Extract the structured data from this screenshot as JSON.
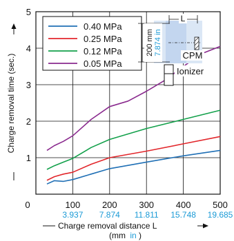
{
  "chart_data": {
    "type": "line",
    "title": "",
    "xlabel": "Charge removal distance L",
    "xlabel_unit_prefix": "(mm",
    "xlabel_unit_alt": "in",
    "xlabel_unit_suffix": ")",
    "ylabel": "Charge removal time (sec.)",
    "xlim": [
      0,
      500
    ],
    "ylim": [
      0,
      5
    ],
    "x_ticks": [
      0,
      100,
      200,
      300,
      400,
      500
    ],
    "x_tick_labels": [
      "0",
      "100",
      "200",
      "300",
      "400",
      "500"
    ],
    "x_tick_labels_in": [
      "",
      "3.937",
      "7.874",
      "11.811",
      "15.748",
      "19.685"
    ],
    "y_ticks": [
      0,
      1,
      2,
      3,
      4,
      5
    ],
    "y_tick_labels": [
      "",
      "1",
      "2",
      "3",
      "4",
      "5"
    ],
    "grid": true,
    "legend": "top-left",
    "series": [
      {
        "name": "0.40 MPa",
        "color": "#1f6fb5",
        "x": [
          30,
          50,
          75,
          100,
          150,
          200,
          300,
          400,
          500
        ],
        "y": [
          0.28,
          0.37,
          0.35,
          0.4,
          0.55,
          0.7,
          0.88,
          1.05,
          1.2
        ]
      },
      {
        "name": "0.25 MPa",
        "color": "#e2262b",
        "x": [
          30,
          50,
          75,
          100,
          150,
          200,
          300,
          400,
          500
        ],
        "y": [
          0.38,
          0.48,
          0.55,
          0.6,
          0.82,
          1.0,
          1.18,
          1.38,
          1.58
        ]
      },
      {
        "name": "0.12 MPa",
        "color": "#12a04a",
        "x": [
          30,
          50,
          75,
          100,
          150,
          200,
          300,
          400,
          500
        ],
        "y": [
          0.68,
          0.78,
          0.88,
          0.98,
          1.28,
          1.5,
          1.8,
          2.05,
          2.3
        ]
      },
      {
        "name": "0.05 MPa",
        "color": "#8a2a8e",
        "x": [
          30,
          50,
          75,
          100,
          150,
          200,
          250,
          300,
          350,
          400,
          450,
          500
        ],
        "y": [
          1.2,
          1.33,
          1.45,
          1.6,
          2.05,
          2.4,
          2.55,
          2.82,
          3.12,
          3.5,
          3.85,
          4.05
        ]
      }
    ],
    "inset": {
      "dim_vertical_mm": "200 mm",
      "dim_vertical_in": "7.874 in",
      "dim_horizontal": "L",
      "cpm_label": "CPM",
      "ionizer_label": "Ionizer"
    }
  }
}
